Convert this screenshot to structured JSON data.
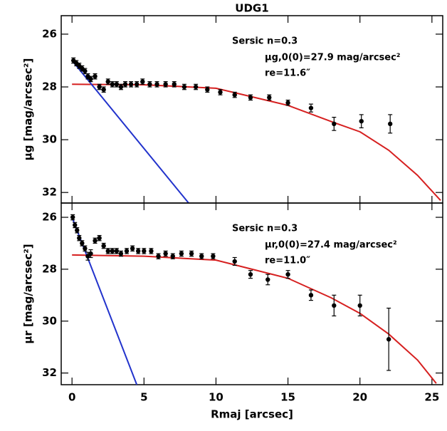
{
  "chart_data": [
    {
      "type": "scatter",
      "title": "UDG1",
      "y_label": "μg [mag/arcsec²]",
      "annotations": [
        "Sersic n=0.3",
        "μg,0(0)=27.9 mag/arcsec²",
        "re=11.6″"
      ],
      "xlim": [
        -0.75,
        25.75
      ],
      "ylim": [
        32.4,
        25.3
      ],
      "xticks": [
        0,
        5,
        10,
        15,
        20,
        25
      ],
      "yticks": [
        26,
        28,
        30,
        32
      ],
      "series": [
        {
          "kind": "points",
          "color": "#000000",
          "x": [
            0.1,
            0.3,
            0.5,
            0.7,
            0.9,
            1.1,
            1.3,
            1.6,
            1.9,
            2.2,
            2.5,
            2.8,
            3.1,
            3.4,
            3.7,
            4.1,
            4.5,
            4.9,
            5.4,
            5.9,
            6.5,
            7.1,
            7.8,
            8.6,
            9.4,
            10.3,
            11.3,
            12.4,
            13.7,
            15.0,
            16.6,
            18.2,
            20.1,
            22.1
          ],
          "values": [
            27.0,
            27.1,
            27.2,
            27.3,
            27.4,
            27.6,
            27.7,
            27.6,
            28.0,
            28.1,
            27.8,
            27.9,
            27.9,
            28.0,
            27.9,
            27.9,
            27.9,
            27.8,
            27.9,
            27.9,
            27.9,
            27.9,
            28.0,
            28.0,
            28.1,
            28.2,
            28.3,
            28.4,
            28.4,
            28.6,
            28.8,
            29.4,
            29.3,
            29.4
          ],
          "errors": [
            0.1,
            0.1,
            0.1,
            0.1,
            0.1,
            0.1,
            0.1,
            0.1,
            0.1,
            0.1,
            0.1,
            0.1,
            0.1,
            0.1,
            0.1,
            0.1,
            0.1,
            0.1,
            0.1,
            0.1,
            0.1,
            0.1,
            0.1,
            0.1,
            0.1,
            0.1,
            0.1,
            0.1,
            0.1,
            0.1,
            0.15,
            0.25,
            0.25,
            0.35
          ]
        },
        {
          "kind": "line",
          "color": "#d62020",
          "x": [
            0,
            5,
            10,
            15,
            18.2,
            20,
            22,
            24,
            25.6
          ],
          "values": [
            27.9,
            27.92,
            28.05,
            28.7,
            29.35,
            29.7,
            30.4,
            31.35,
            32.3
          ]
        },
        {
          "kind": "line",
          "color": "#2233cc",
          "x": [
            0,
            8.1
          ],
          "values": [
            27.0,
            32.4
          ]
        }
      ]
    },
    {
      "type": "scatter",
      "y_label": "μr [mag/arcsec²]",
      "x_label": "Rmaj [arcsec]",
      "annotations": [
        "Sersic n=0.3",
        "μr,0(0)=27.4 mag/arcsec²",
        "re=11.0″"
      ],
      "xlim": [
        -0.75,
        25.75
      ],
      "ylim": [
        32.45,
        25.45
      ],
      "xticks": [
        0,
        5,
        10,
        15,
        20,
        25
      ],
      "yticks": [
        26,
        28,
        30,
        32
      ],
      "series": [
        {
          "kind": "points",
          "color": "#000000",
          "x": [
            0.05,
            0.2,
            0.35,
            0.5,
            0.7,
            0.9,
            1.1,
            1.3,
            1.6,
            1.9,
            2.2,
            2.5,
            2.8,
            3.1,
            3.4,
            3.8,
            4.2,
            4.6,
            5.0,
            5.5,
            6.0,
            6.5,
            7.0,
            7.6,
            8.3,
            9.0,
            9.8,
            11.3,
            12.4,
            13.6,
            15.0,
            16.6,
            18.2,
            20.0,
            22.0
          ],
          "values": [
            26.0,
            26.3,
            26.5,
            26.8,
            27.0,
            27.2,
            27.5,
            27.4,
            26.9,
            26.8,
            27.1,
            27.3,
            27.3,
            27.3,
            27.4,
            27.3,
            27.2,
            27.3,
            27.3,
            27.3,
            27.5,
            27.4,
            27.5,
            27.4,
            27.4,
            27.5,
            27.5,
            27.7,
            28.2,
            28.4,
            28.2,
            29.0,
            29.4,
            29.4,
            30.7
          ],
          "errors": [
            0.1,
            0.1,
            0.1,
            0.1,
            0.1,
            0.1,
            0.15,
            0.15,
            0.1,
            0.1,
            0.1,
            0.1,
            0.1,
            0.1,
            0.1,
            0.1,
            0.1,
            0.1,
            0.1,
            0.1,
            0.1,
            0.1,
            0.1,
            0.1,
            0.1,
            0.1,
            0.1,
            0.15,
            0.15,
            0.2,
            0.15,
            0.2,
            0.4,
            0.4,
            1.2
          ]
        },
        {
          "kind": "line",
          "color": "#d62020",
          "x": [
            0,
            5,
            10,
            12.5,
            15,
            18,
            20,
            22,
            24,
            25.3
          ],
          "values": [
            27.45,
            27.5,
            27.65,
            28.0,
            28.35,
            29.1,
            29.7,
            30.5,
            31.5,
            32.4
          ]
        },
        {
          "kind": "line",
          "color": "#2233cc",
          "x": [
            0,
            4.5
          ],
          "values": [
            26.0,
            32.45
          ]
        }
      ]
    }
  ]
}
